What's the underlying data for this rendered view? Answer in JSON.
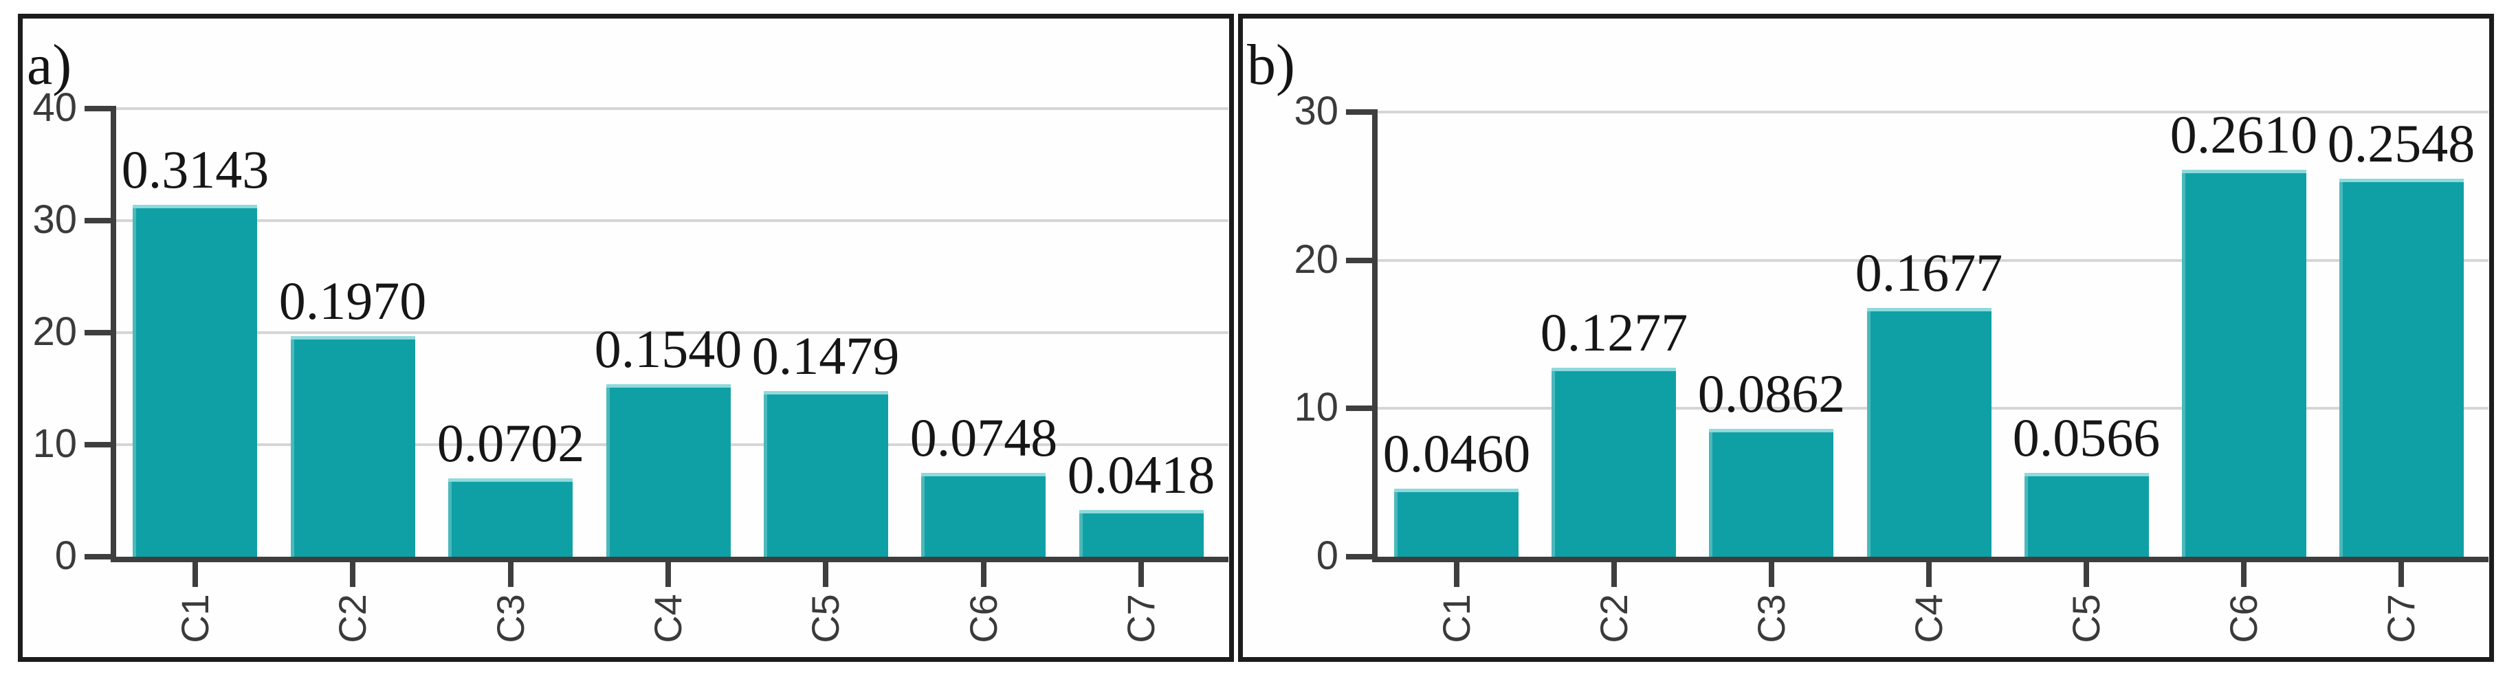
{
  "figure": {
    "background": "#ffffff",
    "panel_border_color": "#1c1c1c",
    "bar_color": "#0FA0A5",
    "bar_highlight_color": "#8FD9DC",
    "gridline_color": "#d6d6d6",
    "axis_color": "#3e3e3e",
    "tick_label_color": "#3a3a3a",
    "value_label_color": "#161616"
  },
  "chart_data": [
    {
      "panel_label": "a)",
      "type": "bar",
      "categories": [
        "C1",
        "C2",
        "C3",
        "C4",
        "C5",
        "C6",
        "C7"
      ],
      "values": [
        31.43,
        19.7,
        7.02,
        15.4,
        14.79,
        7.48,
        4.18
      ],
      "value_labels": [
        "0.3143",
        "0.1970",
        "0.0702",
        "0.1540",
        "0.1479",
        "0.0748",
        "0.0418"
      ],
      "xlabel": "",
      "ylabel": "",
      "ylim": [
        0,
        40
      ],
      "yticks": [
        0,
        10,
        20,
        30,
        40
      ],
      "grid": true,
      "legend": null
    },
    {
      "panel_label": "b)",
      "type": "bar",
      "categories": [
        "C1",
        "C2",
        "C3",
        "C4",
        "C5",
        "C6",
        "C7"
      ],
      "values": [
        4.6,
        12.77,
        8.62,
        16.77,
        5.66,
        26.1,
        25.48
      ],
      "value_labels": [
        "0.0460",
        "0.1277",
        "0.0862",
        "0.1677",
        "0.0566",
        "0.2610",
        "0.2548"
      ],
      "xlabel": "",
      "ylabel": "",
      "ylim": [
        0,
        30
      ],
      "yticks": [
        0,
        10,
        20,
        30
      ],
      "grid": true,
      "legend": null
    }
  ]
}
